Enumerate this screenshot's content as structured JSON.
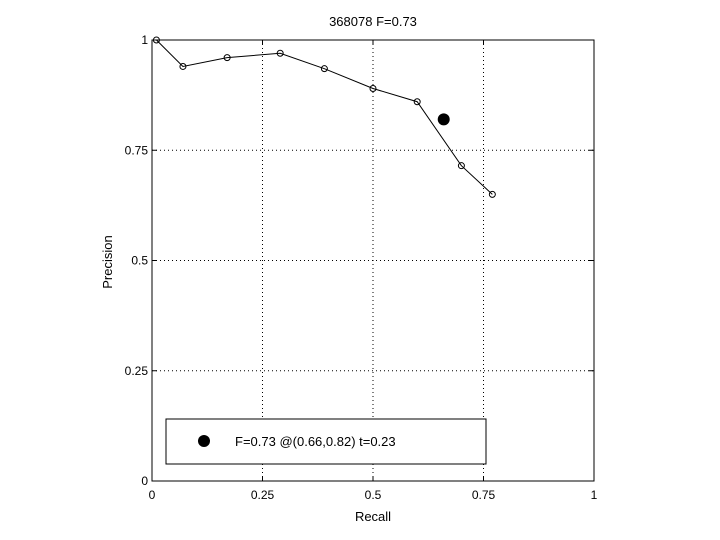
{
  "chart_data": {
    "type": "line",
    "title": "368078 F=0.73",
    "xlabel": "Recall",
    "ylabel": "Precision",
    "xlim": [
      0,
      1
    ],
    "ylim": [
      0,
      1
    ],
    "xticks": [
      0,
      0.25,
      0.5,
      0.75,
      1
    ],
    "yticks": [
      0,
      0.25,
      0.5,
      0.75,
      1
    ],
    "xtick_labels": [
      "0",
      "0.25",
      "0.5",
      "0.75",
      "1"
    ],
    "ytick_labels": [
      "0",
      "0.25",
      "0.5",
      "0.75",
      "1"
    ],
    "grid": true,
    "legend_position": "bottom-left",
    "series": [
      {
        "x": [
          0.01,
          0.07,
          0.17,
          0.29,
          0.39,
          0.5,
          0.6,
          0.7,
          0.77
        ],
        "y": [
          1.0,
          0.94,
          0.96,
          0.97,
          0.935,
          0.89,
          0.86,
          0.715,
          0.65
        ]
      }
    ],
    "highlight_point": {
      "x": 0.66,
      "y": 0.82
    },
    "legend": {
      "label": "F=0.73 @(0.66,0.82) t=0.23"
    }
  }
}
